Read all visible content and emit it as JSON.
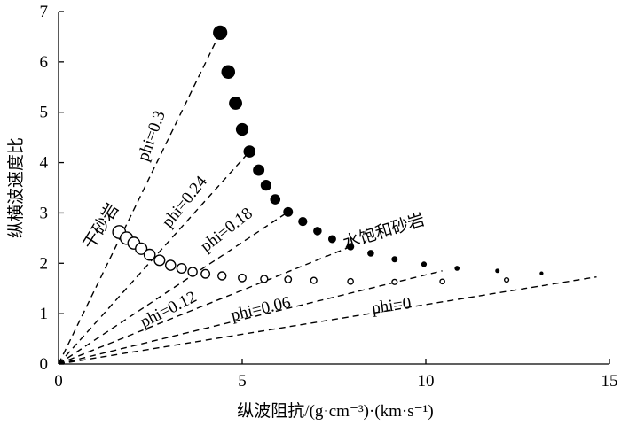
{
  "chart_data": {
    "type": "scatter",
    "xlabel": "纵波阻抗/(g·cm⁻³)·(km·s⁻¹)",
    "ylabel": "纵横波速度比",
    "xlim": [
      0,
      15
    ],
    "ylim": [
      0,
      7
    ],
    "xticks": [
      "0",
      "5",
      "10",
      "15"
    ],
    "yticks": [
      "0",
      "1",
      "2",
      "3",
      "4",
      "5",
      "6",
      "7"
    ],
    "grid": false,
    "series": [
      {
        "name": "干砂岩",
        "marker": "open-circle",
        "points": [
          {
            "x": 1.65,
            "y": 2.62
          },
          {
            "x": 1.85,
            "y": 2.5
          },
          {
            "x": 2.05,
            "y": 2.4
          },
          {
            "x": 2.25,
            "y": 2.29
          },
          {
            "x": 2.48,
            "y": 2.17
          },
          {
            "x": 2.75,
            "y": 2.06
          },
          {
            "x": 3.05,
            "y": 1.96
          },
          {
            "x": 3.35,
            "y": 1.9
          },
          {
            "x": 3.65,
            "y": 1.83
          },
          {
            "x": 4.0,
            "y": 1.79
          },
          {
            "x": 4.45,
            "y": 1.75
          },
          {
            "x": 5.0,
            "y": 1.71
          },
          {
            "x": 5.6,
            "y": 1.69
          },
          {
            "x": 6.25,
            "y": 1.68
          },
          {
            "x": 6.95,
            "y": 1.66
          },
          {
            "x": 7.95,
            "y": 1.64
          },
          {
            "x": 9.15,
            "y": 1.63
          },
          {
            "x": 10.45,
            "y": 1.64
          },
          {
            "x": 12.2,
            "y": 1.67
          }
        ]
      },
      {
        "name": "水饱和砂岩",
        "marker": "filled-circle",
        "points": [
          {
            "x": 4.4,
            "y": 6.58
          },
          {
            "x": 4.62,
            "y": 5.8
          },
          {
            "x": 4.82,
            "y": 5.18
          },
          {
            "x": 5.0,
            "y": 4.66
          },
          {
            "x": 5.2,
            "y": 4.22
          },
          {
            "x": 5.45,
            "y": 3.85
          },
          {
            "x": 5.65,
            "y": 3.55
          },
          {
            "x": 5.9,
            "y": 3.27
          },
          {
            "x": 6.25,
            "y": 3.02
          },
          {
            "x": 6.65,
            "y": 2.83
          },
          {
            "x": 7.05,
            "y": 2.64
          },
          {
            "x": 7.45,
            "y": 2.48
          },
          {
            "x": 7.95,
            "y": 2.33
          },
          {
            "x": 8.5,
            "y": 2.2
          },
          {
            "x": 9.15,
            "y": 2.08
          },
          {
            "x": 9.95,
            "y": 1.98
          },
          {
            "x": 10.85,
            "y": 1.9
          },
          {
            "x": 11.95,
            "y": 1.85
          },
          {
            "x": 13.15,
            "y": 1.8
          }
        ]
      }
    ],
    "reference_lines": [
      {
        "label": "phi=0.3",
        "to": [
          4.4,
          6.58
        ]
      },
      {
        "label": "phi=0.24",
        "to": [
          5.2,
          4.22
        ]
      },
      {
        "label": "phi=0.18",
        "to": [
          6.25,
          3.02
        ]
      },
      {
        "label": "phi=0.12",
        "to": [
          7.95,
          2.33
        ]
      },
      {
        "label": "phi=0.06",
        "to": [
          10.45,
          1.85
        ]
      },
      {
        "label": "phi=0",
        "to": [
          14.65,
          1.73
        ]
      }
    ],
    "annotations": [
      "干砂岩",
      "水饱和砂岩"
    ]
  }
}
